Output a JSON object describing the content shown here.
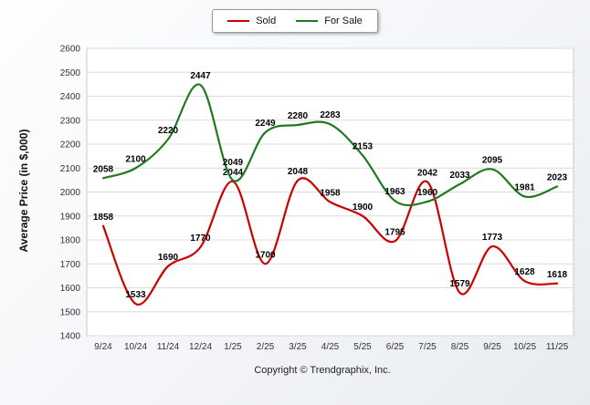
{
  "legend": {
    "sold": "Sold",
    "for_sale": "For Sale"
  },
  "footer": "Copyright © Trendgraphix, Inc.",
  "chart_data": {
    "type": "line",
    "title": "",
    "xlabel": "",
    "ylabel": "Average Price (in $,000)",
    "categories": [
      "9/24",
      "10/24",
      "11/24",
      "12/24",
      "1/25",
      "2/25",
      "3/25",
      "4/25",
      "5/25",
      "6/25",
      "7/25",
      "8/25",
      "9/25",
      "10/25",
      "11/25"
    ],
    "series": [
      {
        "name": "Sold",
        "color": "#cc0000",
        "values": [
          1858,
          1533,
          1690,
          1770,
          2044,
          1700,
          2048,
          1958,
          1900,
          1795,
          2042,
          1579,
          1773,
          1628,
          1618
        ]
      },
      {
        "name": "For Sale",
        "color": "#1f7a1f",
        "values": [
          2058,
          2100,
          2220,
          2447,
          2049,
          2249,
          2280,
          2283,
          2153,
          1963,
          1960,
          2033,
          2095,
          1981,
          2023
        ]
      }
    ],
    "ylim": [
      1400,
      2600
    ],
    "ytick_step": 100,
    "grid": "horizontal",
    "legend_position": "top",
    "grid_color": "#dcdcdc",
    "plot_border_color": "#c8c8c8",
    "tick_label_color": "#333333",
    "data_label_color": "#000000"
  }
}
